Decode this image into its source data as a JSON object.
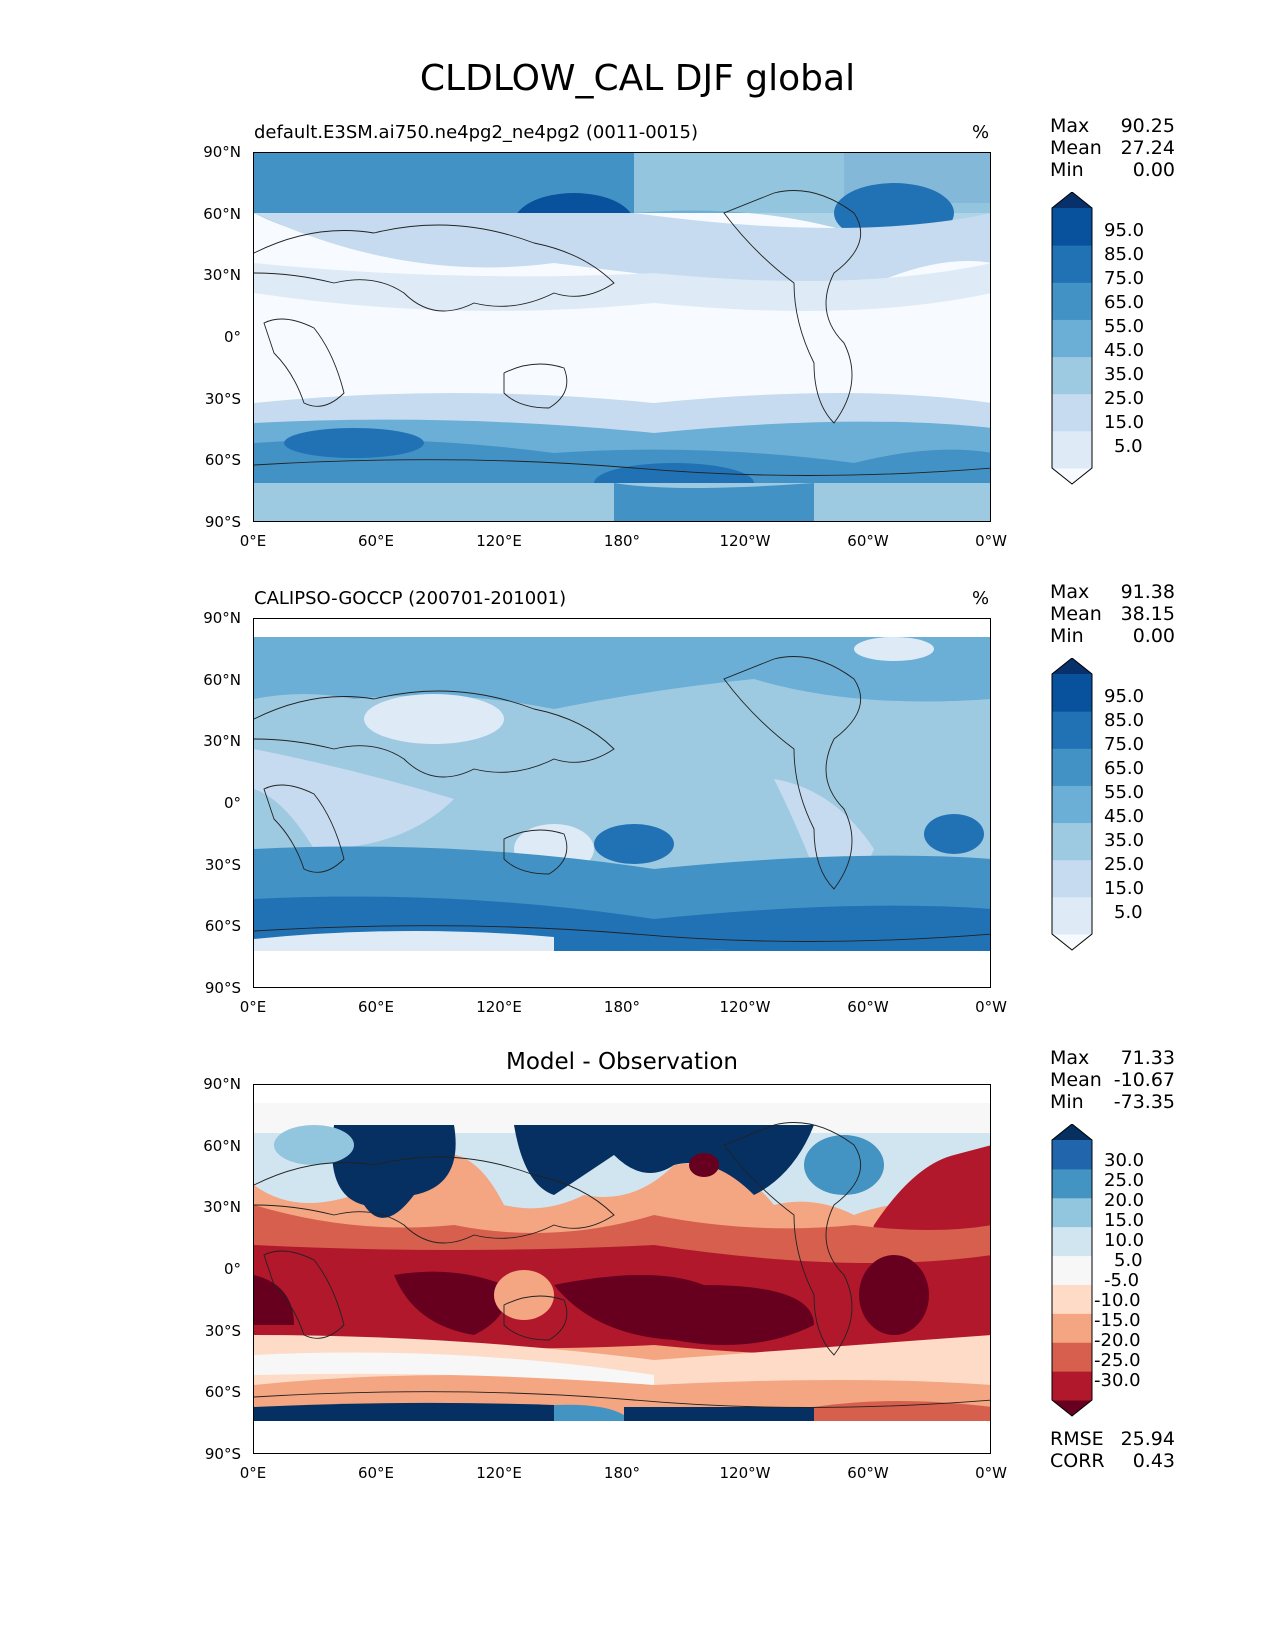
{
  "figure_title": "CLDLOW_CAL DJF global",
  "lat_labels": [
    "90°N",
    "60°N",
    "30°N",
    "0°",
    "30°S",
    "60°S",
    "90°S"
  ],
  "lon_labels": [
    "0°E",
    "60°E",
    "120°E",
    "180°",
    "120°W",
    "60°W",
    "0°W"
  ],
  "panels": [
    {
      "title": "default.E3SM.ai750.ne4pg2_ne4pg2 (0011-0015)",
      "unit": "%",
      "stats": {
        "max_label": "Max",
        "max": "90.25",
        "mean_label": "Mean",
        "mean": "27.24",
        "min_label": "Min",
        "min": "0.00"
      },
      "colorbar_ticks": [
        "95.0",
        "85.0",
        "75.0",
        "65.0",
        "55.0",
        "45.0",
        "35.0",
        "25.0",
        "15.0",
        "5.0"
      ],
      "colorbar_colors": [
        "#f7fbff",
        "#deebf7",
        "#c6dbef",
        "#9ecae1",
        "#6baed6",
        "#4292c6",
        "#2171b5",
        "#08519c",
        "#08306b"
      ]
    },
    {
      "title": "CALIPSO-GOCCP (200701-201001)",
      "unit": "%",
      "stats": {
        "max_label": "Max",
        "max": "91.38",
        "mean_label": "Mean",
        "mean": "38.15",
        "min_label": "Min",
        "min": "0.00"
      },
      "colorbar_ticks": [
        "95.0",
        "85.0",
        "75.0",
        "65.0",
        "55.0",
        "45.0",
        "35.0",
        "25.0",
        "15.0",
        "5.0"
      ],
      "colorbar_colors": [
        "#f7fbff",
        "#deebf7",
        "#c6dbef",
        "#9ecae1",
        "#6baed6",
        "#4292c6",
        "#2171b5",
        "#08519c",
        "#08306b"
      ]
    },
    {
      "title": "Model - Observation",
      "unit": "",
      "stats": {
        "max_label": "Max",
        "max": "71.33",
        "mean_label": "Mean",
        "mean": "-10.67",
        "min_label": "Min",
        "min": "-73.35"
      },
      "colorbar_ticks": [
        "30.0",
        "25.0",
        "20.0",
        "15.0",
        "10.0",
        "5.0",
        "-5.0",
        "-10.0",
        "-15.0",
        "-20.0",
        "-25.0",
        "-30.0"
      ],
      "colorbar_colors": [
        "#67001f",
        "#b2182b",
        "#d6604d",
        "#f4a582",
        "#fddbc7",
        "#f7f7f7",
        "#d1e5f0",
        "#92c5de",
        "#4393c3",
        "#2166ac",
        "#053061"
      ],
      "rmse_label": "RMSE",
      "rmse": "25.94",
      "corr_label": "CORR",
      "corr": "0.43"
    }
  ]
}
